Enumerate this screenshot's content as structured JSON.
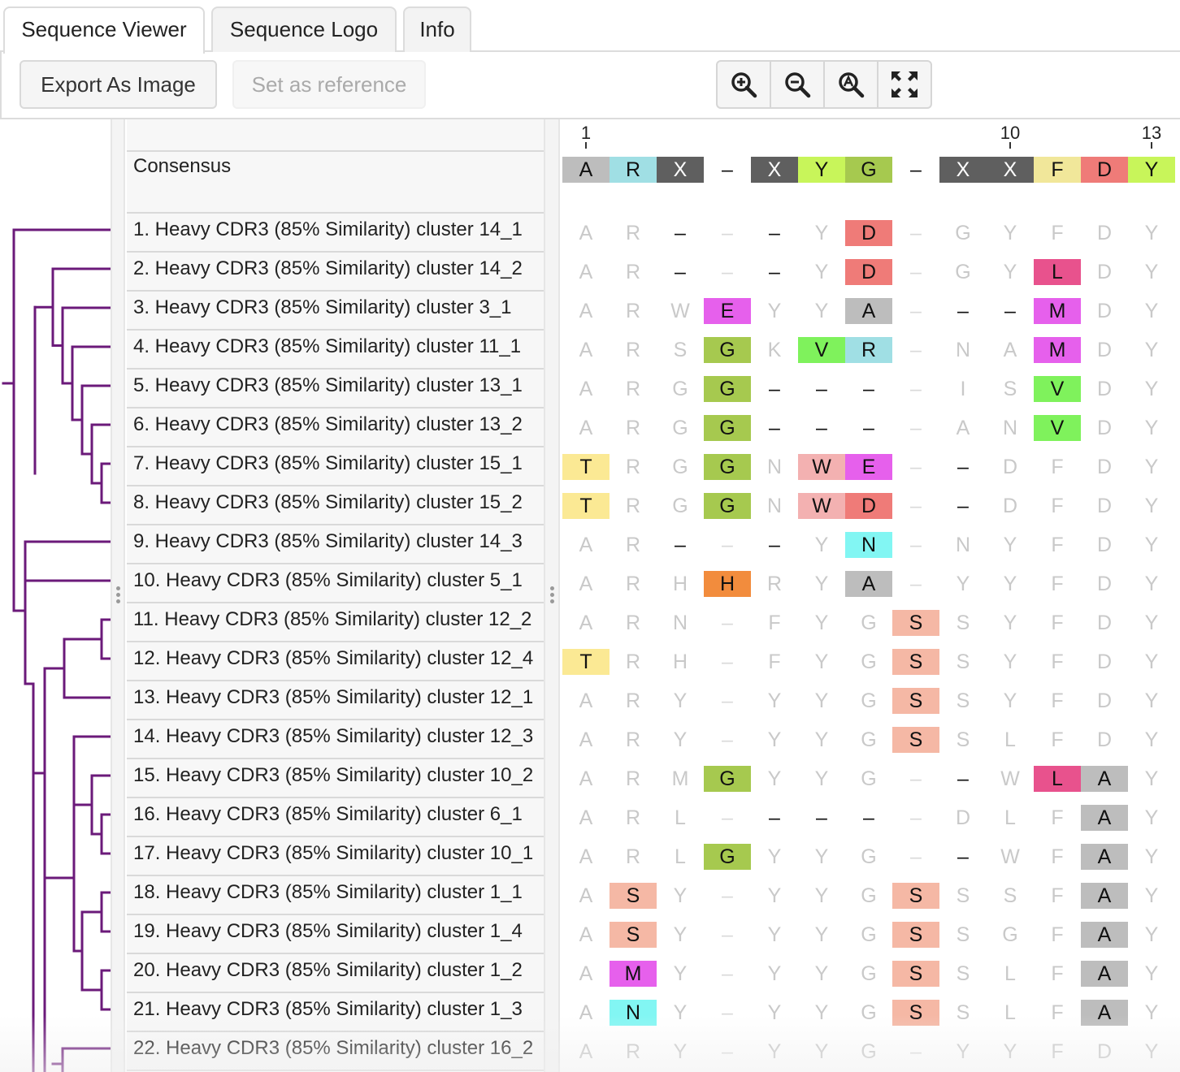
{
  "tabs": [
    {
      "label": "Sequence Viewer",
      "active": true
    },
    {
      "label": "Sequence Logo",
      "active": false
    },
    {
      "label": "Info",
      "active": false
    }
  ],
  "toolbar": {
    "export_label": "Export As Image",
    "reference_label": "Set as reference",
    "zoom_buttons": [
      "zoom-in-icon",
      "zoom-out-icon",
      "zoom-reset-icon",
      "fit-to-screen-icon"
    ]
  },
  "ruler": {
    "labels": [
      {
        "col": 0,
        "text": "1"
      },
      {
        "col": 9,
        "text": "10"
      },
      {
        "col": 12,
        "text": "13"
      }
    ]
  },
  "consensus": {
    "label": "Consensus",
    "residues": [
      "A",
      "R",
      "X",
      "–",
      "X",
      "Y",
      "G",
      "–",
      "X",
      "X",
      "F",
      "D",
      "Y"
    ]
  },
  "tree_color": "#6b1a7a",
  "residue_colors": {
    "A": "#bdbdbd",
    "R": "#a0dfe4",
    "X": "#5f5f5f",
    "Y": "#c8f55a",
    "G": "#a6c94f",
    "F": "#f1e79a",
    "D": "#ef7b78",
    "L": "#e8528d",
    "M": "#e660ec",
    "E": "#e660ec",
    "V": "#7ff25c",
    "T": "#fbe994",
    "W": "#f3b1b1",
    "N": "#82f6f3",
    "H": "#f28c3d",
    "S": "#f5b8a5"
  },
  "rows": [
    {
      "name": "1. Heavy CDR3 (85% Similarity) cluster 14_1",
      "cells": [
        [
          "A",
          0
        ],
        [
          "R",
          0
        ],
        [
          "–",
          2
        ],
        [
          "–",
          3
        ],
        [
          "–",
          2
        ],
        [
          "Y",
          0
        ],
        [
          "D",
          1
        ],
        [
          "–",
          3
        ],
        [
          "G",
          0
        ],
        [
          "Y",
          0
        ],
        [
          "F",
          0
        ],
        [
          "D",
          0
        ],
        [
          "Y",
          0
        ]
      ]
    },
    {
      "name": "2. Heavy CDR3 (85% Similarity) cluster 14_2",
      "cells": [
        [
          "A",
          0
        ],
        [
          "R",
          0
        ],
        [
          "–",
          2
        ],
        [
          "–",
          3
        ],
        [
          "–",
          2
        ],
        [
          "Y",
          0
        ],
        [
          "D",
          1
        ],
        [
          "–",
          3
        ],
        [
          "G",
          0
        ],
        [
          "Y",
          0
        ],
        [
          "L",
          1
        ],
        [
          "D",
          0
        ],
        [
          "Y",
          0
        ]
      ]
    },
    {
      "name": "3. Heavy CDR3 (85% Similarity) cluster 3_1",
      "cells": [
        [
          "A",
          0
        ],
        [
          "R",
          0
        ],
        [
          "W",
          0
        ],
        [
          "E",
          1
        ],
        [
          "Y",
          0
        ],
        [
          "Y",
          0
        ],
        [
          "A",
          1
        ],
        [
          "–",
          3
        ],
        [
          "–",
          2
        ],
        [
          "–",
          2
        ],
        [
          "M",
          1
        ],
        [
          "D",
          0
        ],
        [
          "Y",
          0
        ]
      ]
    },
    {
      "name": "4. Heavy CDR3 (85% Similarity) cluster 11_1",
      "cells": [
        [
          "A",
          0
        ],
        [
          "R",
          0
        ],
        [
          "S",
          0
        ],
        [
          "G",
          1
        ],
        [
          "K",
          0
        ],
        [
          "V",
          1
        ],
        [
          "R",
          1
        ],
        [
          "–",
          3
        ],
        [
          "N",
          0
        ],
        [
          "A",
          0
        ],
        [
          "M",
          1
        ],
        [
          "D",
          0
        ],
        [
          "Y",
          0
        ]
      ]
    },
    {
      "name": "5. Heavy CDR3 (85% Similarity) cluster 13_1",
      "cells": [
        [
          "A",
          0
        ],
        [
          "R",
          0
        ],
        [
          "G",
          0
        ],
        [
          "G",
          1
        ],
        [
          "–",
          2
        ],
        [
          "–",
          2
        ],
        [
          "–",
          2
        ],
        [
          "–",
          3
        ],
        [
          "I",
          0
        ],
        [
          "S",
          0
        ],
        [
          "V",
          1
        ],
        [
          "D",
          0
        ],
        [
          "Y",
          0
        ]
      ]
    },
    {
      "name": "6. Heavy CDR3 (85% Similarity) cluster 13_2",
      "cells": [
        [
          "A",
          0
        ],
        [
          "R",
          0
        ],
        [
          "G",
          0
        ],
        [
          "G",
          1
        ],
        [
          "–",
          2
        ],
        [
          "–",
          2
        ],
        [
          "–",
          2
        ],
        [
          "–",
          3
        ],
        [
          "A",
          0
        ],
        [
          "N",
          0
        ],
        [
          "V",
          1
        ],
        [
          "D",
          0
        ],
        [
          "Y",
          0
        ]
      ]
    },
    {
      "name": "7. Heavy CDR3 (85% Similarity) cluster 15_1",
      "cells": [
        [
          "T",
          1
        ],
        [
          "R",
          0
        ],
        [
          "G",
          0
        ],
        [
          "G",
          1
        ],
        [
          "N",
          0
        ],
        [
          "W",
          1
        ],
        [
          "E",
          1
        ],
        [
          "–",
          3
        ],
        [
          "–",
          2
        ],
        [
          "D",
          0
        ],
        [
          "F",
          0
        ],
        [
          "D",
          0
        ],
        [
          "Y",
          0
        ]
      ]
    },
    {
      "name": "8. Heavy CDR3 (85% Similarity) cluster 15_2",
      "cells": [
        [
          "T",
          1
        ],
        [
          "R",
          0
        ],
        [
          "G",
          0
        ],
        [
          "G",
          1
        ],
        [
          "N",
          0
        ],
        [
          "W",
          1
        ],
        [
          "D",
          1
        ],
        [
          "–",
          3
        ],
        [
          "–",
          2
        ],
        [
          "D",
          0
        ],
        [
          "F",
          0
        ],
        [
          "D",
          0
        ],
        [
          "Y",
          0
        ]
      ]
    },
    {
      "name": "9. Heavy CDR3 (85% Similarity) cluster 14_3",
      "cells": [
        [
          "A",
          0
        ],
        [
          "R",
          0
        ],
        [
          "–",
          2
        ],
        [
          "–",
          3
        ],
        [
          "–",
          2
        ],
        [
          "Y",
          0
        ],
        [
          "N",
          1
        ],
        [
          "–",
          3
        ],
        [
          "N",
          0
        ],
        [
          "Y",
          0
        ],
        [
          "F",
          0
        ],
        [
          "D",
          0
        ],
        [
          "Y",
          0
        ]
      ]
    },
    {
      "name": "10. Heavy CDR3 (85% Similarity) cluster 5_1",
      "cells": [
        [
          "A",
          0
        ],
        [
          "R",
          0
        ],
        [
          "H",
          0
        ],
        [
          "H",
          1
        ],
        [
          "R",
          0
        ],
        [
          "Y",
          0
        ],
        [
          "A",
          1
        ],
        [
          "–",
          3
        ],
        [
          "Y",
          0
        ],
        [
          "Y",
          0
        ],
        [
          "F",
          0
        ],
        [
          "D",
          0
        ],
        [
          "Y",
          0
        ]
      ]
    },
    {
      "name": "11. Heavy CDR3 (85% Similarity) cluster 12_2",
      "cells": [
        [
          "A",
          0
        ],
        [
          "R",
          0
        ],
        [
          "N",
          0
        ],
        [
          "–",
          3
        ],
        [
          "F",
          0
        ],
        [
          "Y",
          0
        ],
        [
          "G",
          0
        ],
        [
          "S",
          1
        ],
        [
          "S",
          0
        ],
        [
          "Y",
          0
        ],
        [
          "F",
          0
        ],
        [
          "D",
          0
        ],
        [
          "Y",
          0
        ]
      ]
    },
    {
      "name": "12. Heavy CDR3 (85% Similarity) cluster 12_4",
      "cells": [
        [
          "T",
          1
        ],
        [
          "R",
          0
        ],
        [
          "H",
          0
        ],
        [
          "–",
          3
        ],
        [
          "F",
          0
        ],
        [
          "Y",
          0
        ],
        [
          "G",
          0
        ],
        [
          "S",
          1
        ],
        [
          "S",
          0
        ],
        [
          "Y",
          0
        ],
        [
          "F",
          0
        ],
        [
          "D",
          0
        ],
        [
          "Y",
          0
        ]
      ]
    },
    {
      "name": "13. Heavy CDR3 (85% Similarity) cluster 12_1",
      "cells": [
        [
          "A",
          0
        ],
        [
          "R",
          0
        ],
        [
          "Y",
          0
        ],
        [
          "–",
          3
        ],
        [
          "Y",
          0
        ],
        [
          "Y",
          0
        ],
        [
          "G",
          0
        ],
        [
          "S",
          1
        ],
        [
          "S",
          0
        ],
        [
          "Y",
          0
        ],
        [
          "F",
          0
        ],
        [
          "D",
          0
        ],
        [
          "Y",
          0
        ]
      ]
    },
    {
      "name": "14. Heavy CDR3 (85% Similarity) cluster 12_3",
      "cells": [
        [
          "A",
          0
        ],
        [
          "R",
          0
        ],
        [
          "Y",
          0
        ],
        [
          "–",
          3
        ],
        [
          "Y",
          0
        ],
        [
          "Y",
          0
        ],
        [
          "G",
          0
        ],
        [
          "S",
          1
        ],
        [
          "S",
          0
        ],
        [
          "L",
          0
        ],
        [
          "F",
          0
        ],
        [
          "D",
          0
        ],
        [
          "Y",
          0
        ]
      ]
    },
    {
      "name": "15. Heavy CDR3 (85% Similarity) cluster 10_2",
      "cells": [
        [
          "A",
          0
        ],
        [
          "R",
          0
        ],
        [
          "M",
          0
        ],
        [
          "G",
          1
        ],
        [
          "Y",
          0
        ],
        [
          "Y",
          0
        ],
        [
          "G",
          0
        ],
        [
          "–",
          3
        ],
        [
          "–",
          2
        ],
        [
          "W",
          0
        ],
        [
          "L",
          1
        ],
        [
          "A",
          1
        ],
        [
          "Y",
          0
        ]
      ]
    },
    {
      "name": "16. Heavy CDR3 (85% Similarity) cluster 6_1",
      "cells": [
        [
          "A",
          0
        ],
        [
          "R",
          0
        ],
        [
          "L",
          0
        ],
        [
          "–",
          3
        ],
        [
          "–",
          2
        ],
        [
          "–",
          2
        ],
        [
          "–",
          2
        ],
        [
          "–",
          3
        ],
        [
          "D",
          0
        ],
        [
          "L",
          0
        ],
        [
          "F",
          0
        ],
        [
          "A",
          1
        ],
        [
          "Y",
          0
        ]
      ]
    },
    {
      "name": "17. Heavy CDR3 (85% Similarity) cluster 10_1",
      "cells": [
        [
          "A",
          0
        ],
        [
          "R",
          0
        ],
        [
          "L",
          0
        ],
        [
          "G",
          1
        ],
        [
          "Y",
          0
        ],
        [
          "Y",
          0
        ],
        [
          "G",
          0
        ],
        [
          "–",
          3
        ],
        [
          "–",
          2
        ],
        [
          "W",
          0
        ],
        [
          "F",
          0
        ],
        [
          "A",
          1
        ],
        [
          "Y",
          0
        ]
      ]
    },
    {
      "name": "18. Heavy CDR3 (85% Similarity) cluster 1_1",
      "cells": [
        [
          "A",
          0
        ],
        [
          "S",
          1
        ],
        [
          "Y",
          0
        ],
        [
          "–",
          3
        ],
        [
          "Y",
          0
        ],
        [
          "Y",
          0
        ],
        [
          "G",
          0
        ],
        [
          "S",
          1
        ],
        [
          "S",
          0
        ],
        [
          "S",
          0
        ],
        [
          "F",
          0
        ],
        [
          "A",
          1
        ],
        [
          "Y",
          0
        ]
      ]
    },
    {
      "name": "19. Heavy CDR3 (85% Similarity) cluster 1_4",
      "cells": [
        [
          "A",
          0
        ],
        [
          "S",
          1
        ],
        [
          "Y",
          0
        ],
        [
          "–",
          3
        ],
        [
          "Y",
          0
        ],
        [
          "Y",
          0
        ],
        [
          "G",
          0
        ],
        [
          "S",
          1
        ],
        [
          "S",
          0
        ],
        [
          "G",
          0
        ],
        [
          "F",
          0
        ],
        [
          "A",
          1
        ],
        [
          "Y",
          0
        ]
      ]
    },
    {
      "name": "20. Heavy CDR3 (85% Similarity) cluster 1_2",
      "cells": [
        [
          "A",
          0
        ],
        [
          "M",
          1
        ],
        [
          "Y",
          0
        ],
        [
          "–",
          3
        ],
        [
          "Y",
          0
        ],
        [
          "Y",
          0
        ],
        [
          "G",
          0
        ],
        [
          "S",
          1
        ],
        [
          "S",
          0
        ],
        [
          "L",
          0
        ],
        [
          "F",
          0
        ],
        [
          "A",
          1
        ],
        [
          "Y",
          0
        ]
      ]
    },
    {
      "name": "21. Heavy CDR3 (85% Similarity) cluster 1_3",
      "cells": [
        [
          "A",
          0
        ],
        [
          "N",
          1
        ],
        [
          "Y",
          0
        ],
        [
          "–",
          3
        ],
        [
          "Y",
          0
        ],
        [
          "Y",
          0
        ],
        [
          "G",
          0
        ],
        [
          "S",
          1
        ],
        [
          "S",
          0
        ],
        [
          "L",
          0
        ],
        [
          "F",
          0
        ],
        [
          "A",
          1
        ],
        [
          "Y",
          0
        ]
      ]
    },
    {
      "name": "22. Heavy CDR3 (85% Similarity) cluster 16_2",
      "cells": [
        [
          "A",
          0
        ],
        [
          "R",
          0
        ],
        [
          "Y",
          0
        ],
        [
          "–",
          3
        ],
        [
          "Y",
          0
        ],
        [
          "Y",
          0
        ],
        [
          "G",
          0
        ],
        [
          "–",
          3
        ],
        [
          "Y",
          0
        ],
        [
          "Y",
          0
        ],
        [
          "F",
          0
        ],
        [
          "D",
          0
        ],
        [
          "Y",
          0
        ]
      ]
    }
  ]
}
